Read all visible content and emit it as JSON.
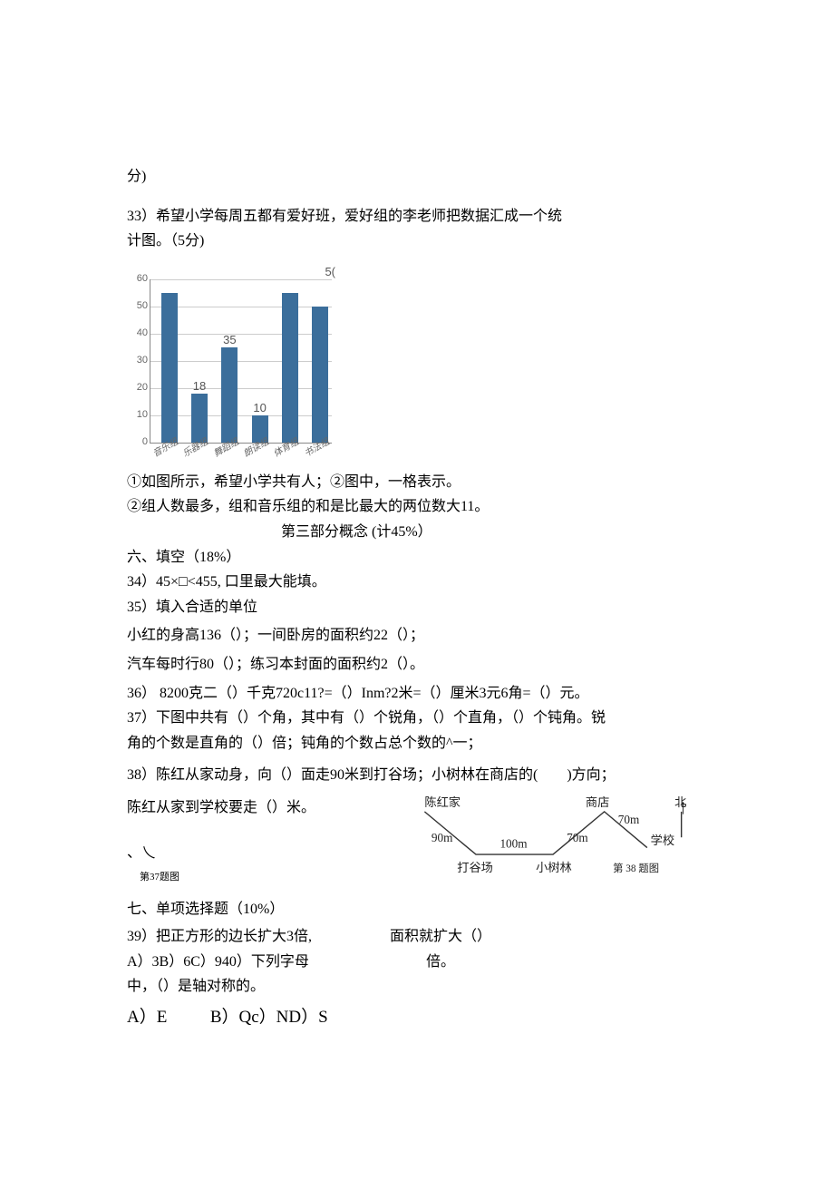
{
  "text": {
    "fen": "分)",
    "q33_l1": "33）希望小学每周五都有爱好班，爱好组的李老师把数据汇成一个统",
    "q33_l2": "计图。（5分)",
    "q33_c1": "①如图所示，希望小学共有人；②图中，一格表示。",
    "q33_c2": "②组人数最多，组和音乐组的和是比最大的两位数大11。",
    "part3": "第三部分概念 (计45%）",
    "s6": "六、填空（18%）",
    "q34": "34）45×□<455, 口里最大能填。",
    "q35": "35）填入合适的单位",
    "q35_a": "小红的身高136（）；一间卧房的面积约22（）；",
    "q35_b": "汽车每时行80（）；练习本封面的面积约2（）。",
    "q36": "36） 8200克二（）千克720c11?=（）Inm?2米=（）厘米3元6角=（）元。",
    "q37_a": "37）下图中共有（）个角，其中有（）个锐角，（）个直角，（）个钝角。锐",
    "q37_b": "角的个数是直角的（）倍；钝角的个数占总个数的^一；",
    "q38_a": "38）陈红从家动身，向（）面走90米到打谷场；小树林在商店的(　　)方向；",
    "q38_b": "陈红从家到学校要走（）米。",
    "fig37_mark": "、乀",
    "fig37_cap": "第37题图",
    "s7": "七、单项选择题（10%）",
    "q39_a": "39）把正方形的边长扩大3倍,",
    "q39_b": "面积就扩大（）",
    "q39_c": "A）3B）6C）940）下列字母",
    "q39_d": "倍。",
    "q39_e": "中，（）是轴对称的。",
    "ans_a": "A）",
    "ans_e": "E",
    "ans_bqc": "B）Qc）ND）S"
  },
  "chart": {
    "type": "bar",
    "ylim": [
      0,
      60
    ],
    "ytick_step": 10,
    "yticks": [
      "0",
      "10",
      "20",
      "30",
      "40",
      "50",
      "60"
    ],
    "bar_color": "#3b6e9b",
    "grid_color": "#cccccc",
    "top_right_label": "5(",
    "bars": [
      {
        "cat": "音乐组",
        "value": 55,
        "label": ""
      },
      {
        "cat": "乐器组",
        "value": 18,
        "label": "18"
      },
      {
        "cat": "舞蹈组",
        "value": 35,
        "label": "35"
      },
      {
        "cat": "朗读组",
        "value": 10,
        "label": "10"
      },
      {
        "cat": "体育组",
        "value": 55,
        "label": ""
      },
      {
        "cat": "书法组",
        "value": 50,
        "label": ""
      }
    ]
  },
  "diagram": {
    "chenhong": "陈红家",
    "shop": "商店",
    "north": "北",
    "d90": "90m",
    "d100": "100m",
    "d70a": "70m",
    "d70b": "70m",
    "school": "学校",
    "dagu": "打谷场",
    "xiaoshu": "小树林",
    "caption": "第 38 题图",
    "north_arrow": "↑",
    "line_color": "#333333"
  }
}
